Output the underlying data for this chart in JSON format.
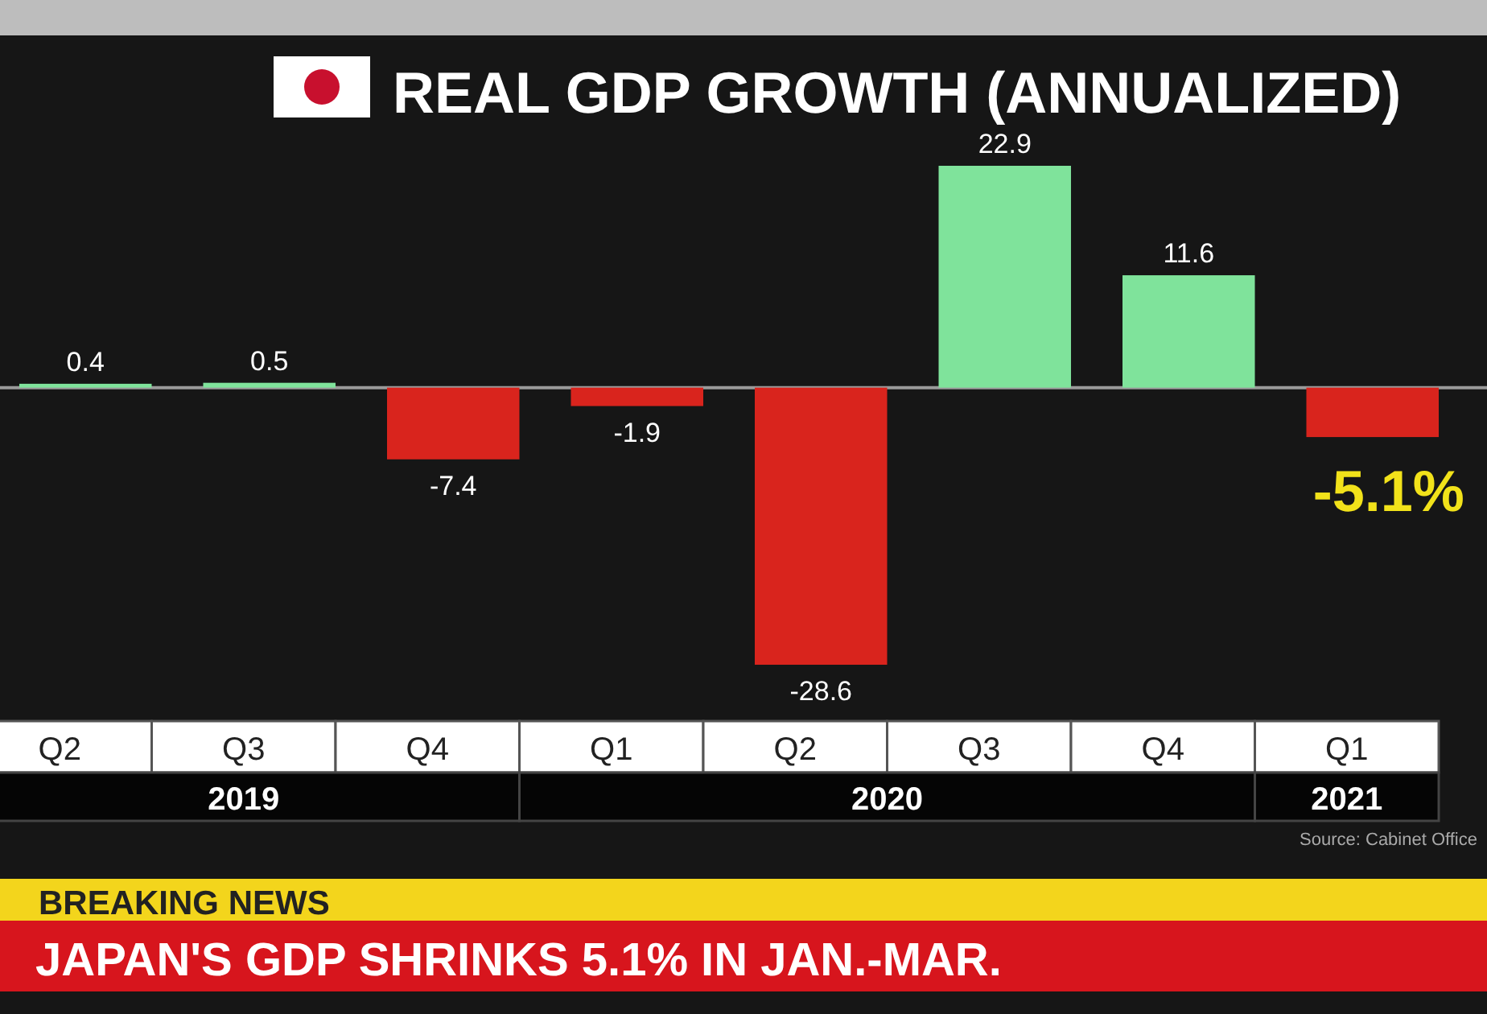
{
  "chart_data": {
    "type": "bar",
    "title": "REAL GDP GROWTH (ANNUALIZED)",
    "categories": [
      "Q2",
      "Q3",
      "Q4",
      "Q1",
      "Q2",
      "Q3",
      "Q4",
      "Q1"
    ],
    "values": [
      0.4,
      0.5,
      -7.4,
      -1.9,
      -28.6,
      22.9,
      11.6,
      -5.1
    ],
    "colors": [
      "#7fe39b",
      "#7fe39b",
      "#d9241d",
      "#d9241d",
      "#d9241d",
      "#7fe39b",
      "#7fe39b",
      "#d9241d"
    ],
    "value_labels": [
      "0.4",
      "0.5",
      "-7.4",
      "-1.9",
      "-28.6",
      "22.9",
      "11.6",
      "-5.1%"
    ],
    "annotations": [
      "2019",
      "2020",
      "2021",
      "Source: Cabinet Office",
      "BREAKING NEWS",
      "JAPAN'S GDP SHRINKS 5.1% IN JAN.-MAR."
    ]
  }
}
